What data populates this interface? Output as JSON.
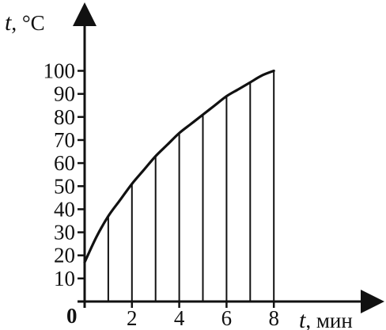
{
  "chart_data": {
    "type": "line",
    "title": "",
    "ylabel_var": "t",
    "ylabel_unit": ", °C",
    "xlabel_var": "t",
    "xlabel_unit": ", мин",
    "origin_label": "0",
    "x_ticks": [
      2,
      4,
      6,
      8
    ],
    "x_tick_labels": [
      "2",
      "4",
      "6",
      "8"
    ],
    "y_ticks": [
      10,
      20,
      30,
      40,
      50,
      60,
      70,
      80,
      90,
      100
    ],
    "y_tick_labels": [
      "10",
      "20",
      "30",
      "40",
      "50",
      "60",
      "70",
      "80",
      "90",
      "100"
    ],
    "xlim": [
      0,
      9
    ],
    "ylim": [
      0,
      100
    ],
    "grid": false,
    "series": [
      {
        "x": [
          0,
          0.5,
          1,
          1.5,
          2,
          2.5,
          3,
          3.5,
          4,
          4.5,
          5,
          5.5,
          6,
          6.5,
          7,
          7.5,
          8
        ],
        "values": [
          17,
          28,
          37,
          44,
          51,
          57,
          63,
          68,
          73,
          77,
          81,
          85,
          89,
          92,
          95,
          98,
          100
        ]
      }
    ],
    "verticals_x": [
      1,
      2,
      3,
      4,
      5,
      6,
      7,
      8
    ],
    "line_color": "#111111"
  }
}
